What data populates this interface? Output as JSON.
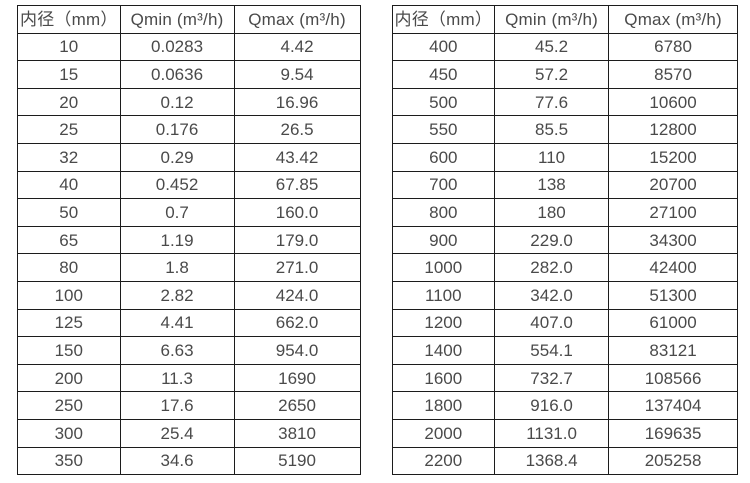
{
  "colors": {
    "background": "#ffffff",
    "border": "#1c1c1c",
    "text": "#4a4a4a"
  },
  "left_table": {
    "headers": [
      "内径（mm）",
      "Qmin (m³/h)",
      "Qmax (m³/h)"
    ],
    "rows": [
      [
        "10",
        "0.0283",
        "4.42"
      ],
      [
        "15",
        "0.0636",
        "9.54"
      ],
      [
        "20",
        "0.12",
        "16.96"
      ],
      [
        "25",
        "0.176",
        "26.5"
      ],
      [
        "32",
        "0.29",
        "43.42"
      ],
      [
        "40",
        "0.452",
        "67.85"
      ],
      [
        "50",
        "0.7",
        "160.0"
      ],
      [
        "65",
        "1.19",
        "179.0"
      ],
      [
        "80",
        "1.8",
        "271.0"
      ],
      [
        "100",
        "2.82",
        "424.0"
      ],
      [
        "125",
        "4.41",
        "662.0"
      ],
      [
        "150",
        "6.63",
        "954.0"
      ],
      [
        "200",
        "11.3",
        "1690"
      ],
      [
        "250",
        "17.6",
        "2650"
      ],
      [
        "300",
        "25.4",
        "3810"
      ],
      [
        "350",
        "34.6",
        "5190"
      ]
    ]
  },
  "right_table": {
    "headers": [
      "内径（mm）",
      "Qmin (m³/h)",
      "Qmax (m³/h)"
    ],
    "rows": [
      [
        "400",
        "45.2",
        "6780"
      ],
      [
        "450",
        "57.2",
        "8570"
      ],
      [
        "500",
        "77.6",
        "10600"
      ],
      [
        "550",
        "85.5",
        "12800"
      ],
      [
        "600",
        "110",
        "15200"
      ],
      [
        "700",
        "138",
        "20700"
      ],
      [
        "800",
        "180",
        "27100"
      ],
      [
        "900",
        "229.0",
        "34300"
      ],
      [
        "1000",
        "282.0",
        "42400"
      ],
      [
        "1100",
        "342.0",
        "51300"
      ],
      [
        "1200",
        "407.0",
        "61000"
      ],
      [
        "1400",
        "554.1",
        "83121"
      ],
      [
        "1600",
        "732.7",
        "108566"
      ],
      [
        "1800",
        "916.0",
        "137404"
      ],
      [
        "2000",
        "1131.0",
        "169635"
      ],
      [
        "2200",
        "1368.4",
        "205258"
      ]
    ]
  }
}
